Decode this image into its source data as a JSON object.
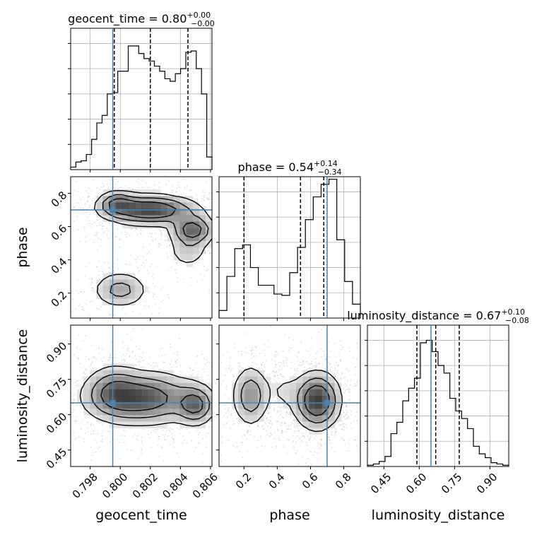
{
  "chart_data": {
    "type": "corner",
    "parameters": [
      "geocent_time",
      "phase",
      "luminosity_distance"
    ],
    "truth": {
      "geocent_time": 0.7995,
      "phase": 0.7,
      "luminosity_distance": 0.65
    },
    "titles": [
      {
        "param": "geocent_time",
        "prefix": "geocent_time = 0.80",
        "sup": "+0.00",
        "sub": "−0.00"
      },
      {
        "param": "phase",
        "prefix": "phase = 0.54",
        "sup": "+0.14",
        "sub": "−0.34"
      },
      {
        "param": "luminosity_distance",
        "prefix": "luminosity_distance = 0.67",
        "sup": "+0.10",
        "sub": "−0.08"
      }
    ],
    "axes": {
      "geocent_time": {
        "lim": [
          0.7967,
          0.8061
        ],
        "ticks": [
          0.798,
          0.8,
          0.802,
          0.804,
          0.806
        ],
        "tick_labels": [
          "0.798",
          "0.800",
          "0.802",
          "0.804",
          "0.806"
        ]
      },
      "phase": {
        "lim": [
          0.05,
          0.9
        ],
        "ticks": [
          0.2,
          0.4,
          0.6,
          0.8
        ],
        "tick_labels": [
          "0.2",
          "0.4",
          "0.6",
          "0.8"
        ]
      },
      "luminosity_distance": {
        "lim": [
          0.38,
          0.98
        ],
        "ticks": [
          0.45,
          0.6,
          0.75,
          0.9
        ],
        "tick_labels": [
          "0.45",
          "0.60",
          "0.75",
          "0.90"
        ]
      }
    },
    "histograms": {
      "geocent_time": {
        "quantiles": [
          0.7996,
          0.802,
          0.8045
        ],
        "counts": [
          0.02,
          0.06,
          0.07,
          0.12,
          0.24,
          0.37,
          0.43,
          0.6,
          0.61,
          0.78,
          0.78,
          0.98,
          0.98,
          0.92,
          0.88,
          0.86,
          0.82,
          0.78,
          0.72,
          0.7,
          0.76,
          0.8,
          0.93,
          0.94,
          0.8,
          0.6,
          0.1
        ]
      },
      "phase": {
        "quantiles": [
          0.2,
          0.54,
          0.68
        ],
        "counts": [
          0.06,
          0.33,
          0.55,
          0.58,
          0.4,
          0.26,
          0.26,
          0.19,
          0.18,
          0.36,
          0.56,
          0.78,
          0.96,
          1.06,
          1.1,
          0.62,
          0.29,
          0.11
        ]
      },
      "luminosity_distance": {
        "quantiles": [
          0.59,
          0.67,
          0.77
        ],
        "counts": [
          0.01,
          0.02,
          0.04,
          0.08,
          0.26,
          0.35,
          0.52,
          0.62,
          0.7,
          0.98,
          1.0,
          0.91,
          0.8,
          0.74,
          0.54,
          0.44,
          0.38,
          0.3,
          0.16,
          0.1,
          0.07,
          0.03,
          0.02,
          0.01
        ]
      }
    },
    "panels": [
      {
        "x": "geocent_time",
        "y": "phase",
        "blobs": [
          {
            "cx": 0.802,
            "cy": 0.7,
            "sx": 0.0017,
            "sy": 0.048,
            "w": 1.0,
            "rot": -0.35
          },
          {
            "cx": 0.8048,
            "cy": 0.58,
            "sx": 0.0008,
            "sy": 0.05,
            "w": 0.8,
            "rot": 0
          },
          {
            "cx": 0.7998,
            "cy": 0.74,
            "sx": 0.0007,
            "sy": 0.04,
            "w": 0.6,
            "rot": 0
          },
          {
            "cx": 0.8,
            "cy": 0.22,
            "sx": 0.001,
            "sy": 0.06,
            "w": 0.45,
            "rot": -0.5
          },
          {
            "cx": 0.8045,
            "cy": 0.45,
            "sx": 0.0008,
            "sy": 0.06,
            "w": 0.25,
            "rot": 0
          }
        ]
      },
      {
        "x": "geocent_time",
        "y": "luminosity_distance",
        "blobs": [
          {
            "cx": 0.8015,
            "cy": 0.67,
            "sx": 0.002,
            "sy": 0.06,
            "w": 1.0,
            "rot": 0
          },
          {
            "cx": 0.805,
            "cy": 0.64,
            "sx": 0.0007,
            "sy": 0.045,
            "w": 0.8,
            "rot": 0
          },
          {
            "cx": 0.7995,
            "cy": 0.7,
            "sx": 0.001,
            "sy": 0.06,
            "w": 0.5,
            "rot": 0
          }
        ]
      },
      {
        "x": "phase",
        "y": "luminosity_distance",
        "blobs": [
          {
            "cx": 0.64,
            "cy": 0.66,
            "sx": 0.075,
            "sy": 0.065,
            "w": 1.0,
            "rot": 0
          },
          {
            "cx": 0.24,
            "cy": 0.68,
            "sx": 0.06,
            "sy": 0.07,
            "w": 0.55,
            "rot": 0
          },
          {
            "cx": 0.44,
            "cy": 0.7,
            "sx": 0.06,
            "sy": 0.05,
            "w": 0.15,
            "rot": 0
          }
        ]
      }
    ]
  }
}
